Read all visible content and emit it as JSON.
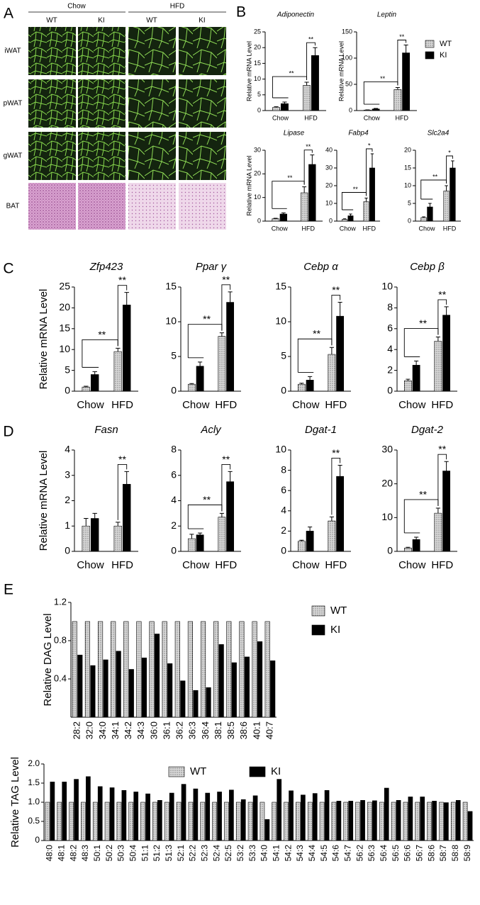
{
  "panel_labels": [
    "A",
    "B",
    "C",
    "D",
    "E"
  ],
  "panel_a": {
    "groups": [
      "Chow",
      "HFD"
    ],
    "genotypes": [
      "WT",
      "KI",
      "WT",
      "KI"
    ],
    "tissues": [
      "iWAT",
      "pWAT",
      "gWAT",
      "BAT"
    ]
  },
  "chart_data": [
    {
      "type": "bar",
      "title": "Adiponectin",
      "ylabel": "Relative mRNA Level",
      "categories": [
        "Chow",
        "HFD"
      ],
      "series": [
        {
          "color": "#d8d8d8",
          "pattern": "dots",
          "values": [
            1,
            8
          ],
          "errors": [
            0.2,
            1
          ]
        },
        {
          "color": "#000000",
          "values": [
            2.2,
            17.5
          ],
          "errors": [
            0.5,
            2.5
          ]
        }
      ],
      "ylim": [
        0,
        25
      ],
      "yticks": [
        0,
        5,
        10,
        15,
        20,
        25
      ],
      "significance": {
        "across_diet": "**",
        "within_hfd": "**"
      }
    },
    {
      "type": "bar",
      "title": "Leptin",
      "ylabel": "Relative mRNA Level",
      "categories": [
        "Chow",
        "HFD"
      ],
      "legend": "right",
      "series": [
        {
          "name": "WT",
          "color": "#d8d8d8",
          "pattern": "dots",
          "values": [
            1,
            40
          ],
          "errors": [
            0.3,
            4
          ]
        },
        {
          "name": "KI",
          "color": "#000000",
          "values": [
            3,
            110
          ],
          "errors": [
            1,
            15
          ]
        }
      ],
      "ylim": [
        0,
        150
      ],
      "yticks": [
        0,
        50,
        100,
        150
      ],
      "significance": {
        "across_diet": "**",
        "within_hfd": "**"
      }
    },
    {
      "type": "bar",
      "title": "Lipase",
      "ylabel": "Relative mRNA Level",
      "categories": [
        "Chow",
        "HFD"
      ],
      "series": [
        {
          "color": "#d8d8d8",
          "pattern": "dots",
          "values": [
            1,
            12
          ],
          "errors": [
            0.2,
            2.5
          ]
        },
        {
          "color": "#000000",
          "values": [
            3,
            24
          ],
          "errors": [
            0.5,
            4
          ]
        }
      ],
      "ylim": [
        0,
        30
      ],
      "yticks": [
        0,
        10,
        20,
        30
      ],
      "significance": {
        "across_diet": "**",
        "within_hfd": "**"
      }
    },
    {
      "type": "bar",
      "title": "Fabp4",
      "categories": [
        "Chow",
        "HFD"
      ],
      "series": [
        {
          "color": "#d8d8d8",
          "pattern": "dots",
          "values": [
            1,
            11
          ],
          "errors": [
            0.3,
            2
          ]
        },
        {
          "color": "#000000",
          "values": [
            3,
            30
          ],
          "errors": [
            1,
            8
          ]
        }
      ],
      "ylim": [
        0,
        40
      ],
      "yticks": [
        0,
        10,
        20,
        30,
        40
      ],
      "significance": {
        "across_diet": "**",
        "within_hfd": "*"
      }
    },
    {
      "type": "bar",
      "title": "Slc2a4",
      "categories": [
        "Chow",
        "HFD"
      ],
      "series": [
        {
          "color": "#d8d8d8",
          "pattern": "dots",
          "values": [
            1,
            8.5
          ],
          "errors": [
            0.2,
            1.5
          ]
        },
        {
          "color": "#000000",
          "values": [
            4,
            15
          ],
          "errors": [
            1,
            2
          ]
        }
      ],
      "ylim": [
        0,
        20
      ],
      "yticks": [
        0,
        5,
        10,
        15,
        20
      ],
      "significance": {
        "across_diet": "**",
        "within_hfd": "*"
      }
    },
    {
      "type": "bar",
      "title": "Zfp423",
      "ylabel": "Relative mRNA Level",
      "categories": [
        "Chow",
        "HFD"
      ],
      "series": [
        {
          "color": "#d8d8d8",
          "pattern": "dots",
          "values": [
            1,
            9.5
          ],
          "errors": [
            0.2,
            0.8
          ]
        },
        {
          "color": "#000000",
          "values": [
            4,
            20.7
          ],
          "errors": [
            0.7,
            3
          ]
        }
      ],
      "ylim": [
        0,
        25
      ],
      "yticks": [
        0,
        5,
        10,
        15,
        20,
        25
      ],
      "significance": {
        "across_diet": "**",
        "within_hfd": "**"
      }
    },
    {
      "type": "bar",
      "title": "Ppar γ",
      "categories": [
        "Chow",
        "HFD"
      ],
      "series": [
        {
          "color": "#d8d8d8",
          "pattern": "dots",
          "values": [
            1,
            7.9
          ],
          "errors": [
            0.1,
            0.5
          ]
        },
        {
          "color": "#000000",
          "values": [
            3.6,
            12.8
          ],
          "errors": [
            0.6,
            1.5
          ]
        }
      ],
      "ylim": [
        0,
        15
      ],
      "yticks": [
        0,
        5,
        10,
        15
      ],
      "significance": {
        "across_diet": "**",
        "within_hfd": "**"
      }
    },
    {
      "type": "bar",
      "title": "Cebp α",
      "categories": [
        "Chow",
        "HFD"
      ],
      "series": [
        {
          "color": "#d8d8d8",
          "pattern": "dots",
          "values": [
            1,
            5.3
          ],
          "errors": [
            0.15,
            1
          ]
        },
        {
          "color": "#000000",
          "values": [
            1.6,
            10.8
          ],
          "errors": [
            0.5,
            2
          ]
        }
      ],
      "ylim": [
        0,
        15
      ],
      "yticks": [
        0,
        5,
        10,
        15
      ],
      "significance": {
        "across_diet": "**",
        "within_hfd": "**"
      }
    },
    {
      "type": "bar",
      "title": "Cebp β",
      "categories": [
        "Chow",
        "HFD"
      ],
      "series": [
        {
          "color": "#d8d8d8",
          "pattern": "dots",
          "values": [
            1,
            4.8
          ],
          "errors": [
            0.15,
            0.4
          ]
        },
        {
          "color": "#000000",
          "values": [
            2.5,
            7.3
          ],
          "errors": [
            0.4,
            0.8
          ]
        }
      ],
      "ylim": [
        0,
        10
      ],
      "yticks": [
        0,
        2,
        4,
        6,
        8,
        10
      ],
      "significance": {
        "across_diet": "**",
        "within_hfd": "**"
      }
    },
    {
      "type": "bar",
      "title": "Fasn",
      "ylabel": "Relative mRNA Level",
      "categories": [
        "Chow",
        "HFD"
      ],
      "series": [
        {
          "color": "#d8d8d8",
          "pattern": "dots",
          "values": [
            1,
            1
          ],
          "errors": [
            0.3,
            0.15
          ]
        },
        {
          "color": "#000000",
          "values": [
            1.3,
            2.65
          ],
          "errors": [
            0.2,
            0.5
          ]
        }
      ],
      "ylim": [
        0,
        4
      ],
      "yticks": [
        0,
        1,
        2,
        3,
        4
      ],
      "significance": {
        "within_hfd": "**"
      }
    },
    {
      "type": "bar",
      "title": "Acly",
      "categories": [
        "Chow",
        "HFD"
      ],
      "series": [
        {
          "color": "#d8d8d8",
          "pattern": "dots",
          "values": [
            1,
            2.7
          ],
          "errors": [
            0.35,
            0.3
          ]
        },
        {
          "color": "#000000",
          "values": [
            1.3,
            5.5
          ],
          "errors": [
            0.15,
            0.8
          ]
        }
      ],
      "ylim": [
        0,
        8
      ],
      "yticks": [
        0,
        2,
        4,
        6,
        8
      ],
      "significance": {
        "across_diet": "**",
        "within_hfd": "**"
      }
    },
    {
      "type": "bar",
      "title": "Dgat-1",
      "categories": [
        "Chow",
        "HFD"
      ],
      "series": [
        {
          "color": "#d8d8d8",
          "pattern": "dots",
          "values": [
            1,
            3
          ],
          "errors": [
            0.1,
            0.4
          ]
        },
        {
          "color": "#000000",
          "values": [
            2,
            7.4
          ],
          "errors": [
            0.4,
            1.1
          ]
        }
      ],
      "ylim": [
        0,
        10
      ],
      "yticks": [
        0,
        2,
        4,
        6,
        8,
        10
      ],
      "significance": {
        "within_hfd": "**"
      }
    },
    {
      "type": "bar",
      "title": "Dgat-2",
      "categories": [
        "Chow",
        "HFD"
      ],
      "series": [
        {
          "color": "#d8d8d8",
          "pattern": "dots",
          "values": [
            1,
            11.3
          ],
          "errors": [
            0.2,
            1.5
          ]
        },
        {
          "color": "#000000",
          "values": [
            3.5,
            23.8
          ],
          "errors": [
            0.7,
            2.8
          ]
        }
      ],
      "ylim": [
        0,
        30
      ],
      "yticks": [
        0,
        10,
        20,
        30
      ],
      "significance": {
        "across_diet": "**",
        "within_hfd": "**"
      }
    },
    {
      "type": "bar",
      "ylabel": "Relative DAG Level",
      "legend": "right",
      "categories": [
        "28:2",
        "32:0",
        "34:0",
        "34:1",
        "34:2",
        "34:3",
        "36:0",
        "36:1",
        "36:2",
        "36:3",
        "36:4",
        "38:1",
        "38:5",
        "38:6",
        "40:1",
        "40:7"
      ],
      "series": [
        {
          "name": "WT",
          "color": "#d8d8d8",
          "pattern": "dots",
          "values": [
            1,
            1,
            1,
            1,
            1,
            1,
            1,
            1,
            1,
            1,
            1,
            1,
            1,
            1,
            1,
            1
          ]
        },
        {
          "name": "KI",
          "color": "#000000",
          "values": [
            0.65,
            0.54,
            0.6,
            0.69,
            0.5,
            0.62,
            0.87,
            0.56,
            0.38,
            0.28,
            0.31,
            0.76,
            0.57,
            0.63,
            0.79,
            0.59
          ]
        }
      ],
      "ylim": [
        0,
        1.2
      ],
      "yticks": [
        0.4,
        0.8,
        1.2
      ]
    },
    {
      "type": "bar",
      "ylabel": "Relative TAG Level",
      "legend": "top",
      "categories": [
        "48:0",
        "48:1",
        "48:2",
        "48:3",
        "50:1",
        "50:2",
        "50:3",
        "50:4",
        "51:1",
        "51:2",
        "51:3",
        "52:1",
        "52:2",
        "52:3",
        "52:4",
        "52:5",
        "53:2",
        "53:3",
        "54:0",
        "54:1",
        "54:2",
        "54:3",
        "54:4",
        "54:5",
        "54:6",
        "54:7",
        "56:2",
        "56:3",
        "56:4",
        "56:5",
        "56:6",
        "56:7",
        "58:6",
        "58:7",
        "58:8",
        "58:9"
      ],
      "series": [
        {
          "name": "WT",
          "color": "#d8d8d8",
          "pattern": "dots",
          "values": [
            1,
            1,
            1,
            1,
            1,
            1,
            1,
            1,
            1,
            1,
            1,
            1,
            1,
            1,
            1,
            1,
            1,
            1,
            1,
            1,
            1,
            1,
            1,
            1,
            1,
            1,
            1,
            1,
            1,
            1,
            1,
            1,
            1,
            1,
            1,
            1
          ]
        },
        {
          "name": "KI",
          "color": "#000000",
          "values": [
            1.53,
            1.53,
            1.6,
            1.67,
            1.41,
            1.38,
            1.31,
            1.27,
            1.22,
            1.05,
            1.24,
            1.47,
            1.35,
            1.24,
            1.27,
            1.32,
            1.07,
            1.17,
            0.55,
            1.6,
            1.3,
            1.19,
            1.23,
            1.31,
            1.03,
            1.03,
            1.05,
            1.04,
            1.37,
            1.05,
            1.14,
            1.14,
            1.03,
            0.99,
            1.05,
            0.76
          ]
        }
      ],
      "ylim": [
        0,
        2
      ],
      "yticks": [
        0,
        0.5,
        {
          "value": 1,
          "label": "1.0"
        },
        1.5,
        {
          "value": 2,
          "label": "2.0"
        }
      ]
    }
  ]
}
